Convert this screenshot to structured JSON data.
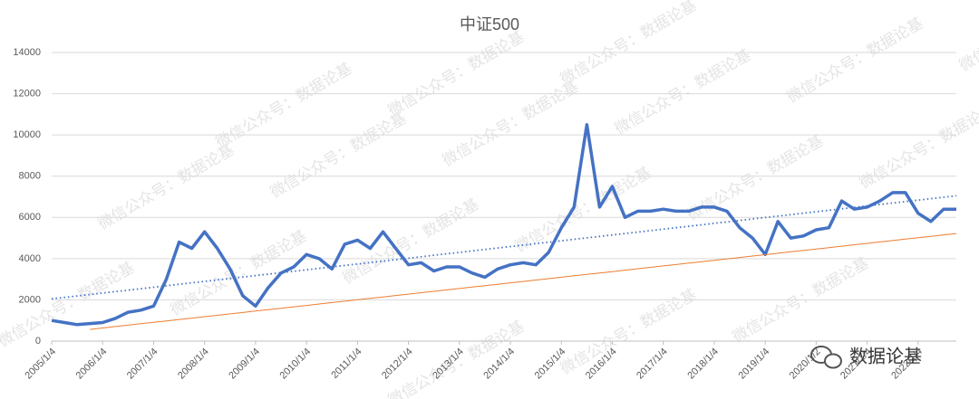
{
  "chart_data": {
    "type": "line",
    "title": "中证500",
    "categories": [
      "2005/1/4",
      null,
      null,
      null,
      "2006/1/4",
      null,
      null,
      null,
      "2007/1/4",
      null,
      null,
      null,
      "2008/1/4",
      null,
      null,
      null,
      "2009/1/4",
      null,
      null,
      null,
      "2010/1/4",
      null,
      null,
      null,
      "2011/1/4",
      null,
      null,
      null,
      "2012/1/4",
      null,
      null,
      null,
      "2013/1/4",
      null,
      null,
      null,
      "2014/1/4",
      null,
      null,
      null,
      "2015/1/4",
      null,
      null,
      null,
      "2016/1/4",
      null,
      null,
      null,
      "2017/1/4",
      null,
      null,
      null,
      "2018/1/4",
      null,
      null,
      null,
      "2019/1/4",
      null,
      null,
      null,
      "2020/1/2",
      null,
      null,
      null,
      "2021/1/4",
      null,
      null,
      null,
      "2022/1/4",
      null,
      null,
      null
    ],
    "series": [
      {
        "color": "#4472c4",
        "style": "solid",
        "width": 3.5,
        "values": [
          1000,
          900,
          800,
          850,
          900,
          1100,
          1400,
          1500,
          1700,
          3000,
          4800,
          4500,
          5300,
          4500,
          3500,
          2200,
          1700,
          2600,
          3300,
          3600,
          4200,
          4000,
          3500,
          4700,
          4900,
          4500,
          5300,
          4500,
          3700,
          3800,
          3400,
          3600,
          3600,
          3300,
          3100,
          3500,
          3700,
          3800,
          3700,
          4300,
          5500,
          6500,
          10500,
          6500,
          7500,
          6000,
          6300,
          6300,
          6400,
          6300,
          6300,
          6500,
          6500,
          6300,
          5500,
          5000,
          4200,
          5800,
          5000,
          5100,
          5400,
          5500,
          6800,
          6400,
          6500,
          6800,
          7200,
          7200,
          6200,
          5800,
          6400,
          6400
        ]
      },
      {
        "color": "#4472c4",
        "style": "dotted",
        "width": 1.8,
        "values": [
          2050,
          2120,
          2191,
          2261,
          2332,
          2402,
          2473,
          2543,
          2613,
          2684,
          2754,
          2825,
          2895,
          2965,
          3036,
          3106,
          3177,
          3247,
          3318,
          3388,
          3458,
          3529,
          3599,
          3670,
          3740,
          3810,
          3881,
          3951,
          4022,
          4092,
          4163,
          4233,
          4303,
          4374,
          4444,
          4515,
          4585,
          4655,
          4726,
          4796,
          4867,
          4937,
          5008,
          5078,
          5148,
          5219,
          5289,
          5360,
          5430,
          5501,
          5571,
          5641,
          5712,
          5782,
          5853,
          5923,
          5993,
          6064,
          6134,
          6205,
          6275,
          6346,
          6416,
          6486,
          6557,
          6627,
          6698,
          6768,
          6838,
          6909,
          6979,
          7050
        ]
      },
      {
        "color": "#ed7d31",
        "style": "solid",
        "width": 1,
        "values": [
          null,
          null,
          null,
          568,
          636,
          705,
          773,
          842,
          910,
          978,
          1047,
          1115,
          1184,
          1252,
          1320,
          1389,
          1457,
          1526,
          1594,
          1662,
          1731,
          1799,
          1868,
          1936,
          2004,
          2073,
          2141,
          2210,
          2278,
          2346,
          2415,
          2483,
          2552,
          2620,
          2688,
          2757,
          2825,
          2894,
          2962,
          3030,
          3099,
          3167,
          3236,
          3304,
          3372,
          3441,
          3509,
          3578,
          3646,
          3714,
          3783,
          3851,
          3920,
          3988,
          4056,
          4125,
          4193,
          4262,
          4330,
          4398,
          4467,
          4535,
          4604,
          4672,
          4740,
          4809,
          4877,
          4946,
          5014,
          5082,
          5151,
          5219
        ]
      }
    ],
    "ylim": [
      0,
      14000
    ],
    "yticks": [
      0,
      2000,
      4000,
      6000,
      8000,
      10000,
      12000,
      14000
    ],
    "grid": true
  },
  "watermark": "微信公众号：数据论基",
  "logo_text": "数据论基"
}
